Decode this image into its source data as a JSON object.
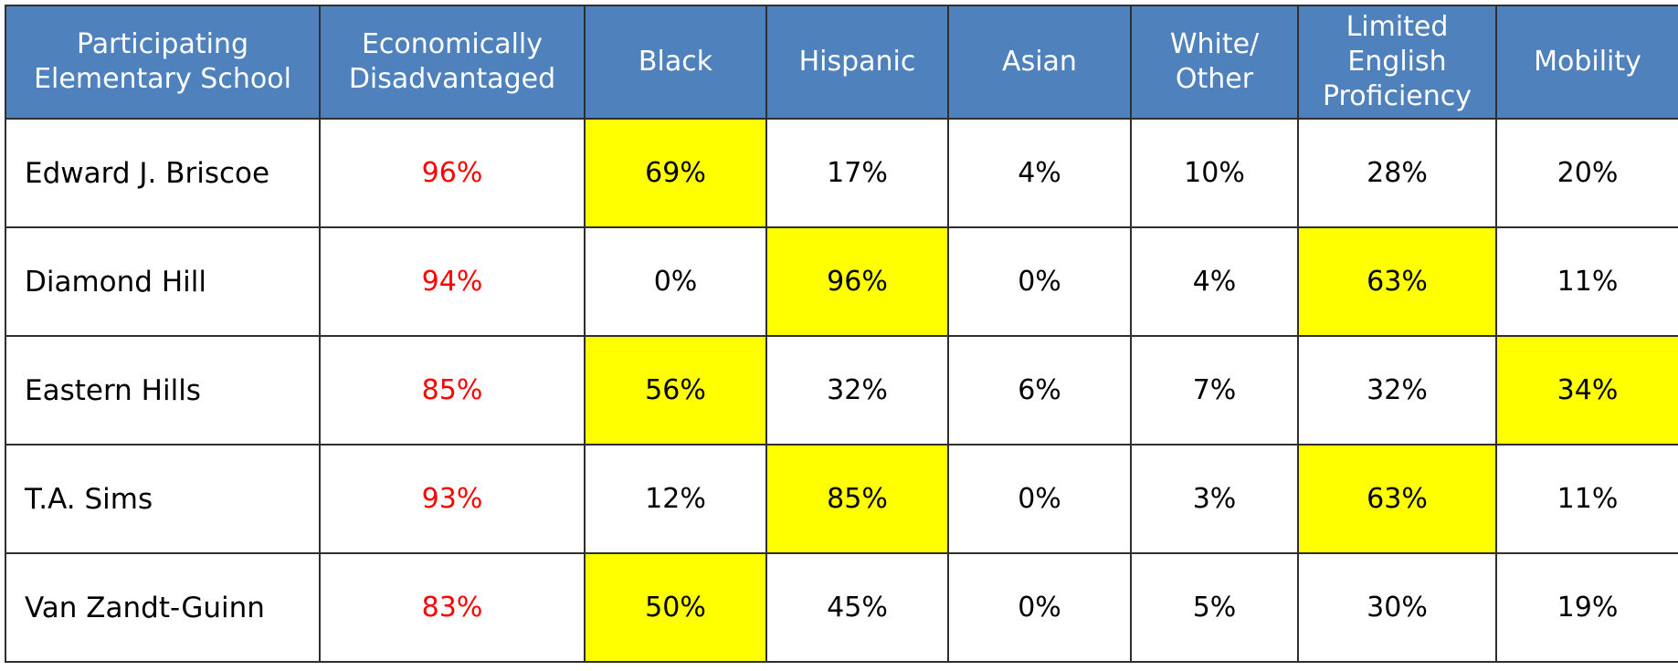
{
  "headers": [
    "Participating\nElementary School",
    "Economically\nDisadvantaged",
    "Black",
    "Hispanic",
    "Asian",
    "White/\nOther",
    "Limited\nEnglish\nProficiency",
    "Mobility"
  ],
  "rows": [
    {
      "school": "Edward J. Briscoe",
      "values": [
        "96%",
        "69%",
        "17%",
        "4%",
        "10%",
        "28%",
        "20%"
      ],
      "highlight": [
        false,
        true,
        false,
        false,
        false,
        false,
        false
      ]
    },
    {
      "school": "Diamond Hill",
      "values": [
        "94%",
        "0%",
        "96%",
        "0%",
        "4%",
        "63%",
        "11%"
      ],
      "highlight": [
        false,
        false,
        true,
        false,
        false,
        true,
        false
      ]
    },
    {
      "school": "Eastern Hills",
      "values": [
        "85%",
        "56%",
        "32%",
        "6%",
        "7%",
        "32%",
        "34%"
      ],
      "highlight": [
        false,
        true,
        false,
        false,
        false,
        false,
        true
      ]
    },
    {
      "school": "T.A. Sims",
      "values": [
        "93%",
        "12%",
        "85%",
        "0%",
        "3%",
        "63%",
        "11%"
      ],
      "highlight": [
        false,
        false,
        true,
        false,
        false,
        true,
        false
      ]
    },
    {
      "school": "Van Zandt-Guinn",
      "values": [
        "83%",
        "50%",
        "45%",
        "0%",
        "5%",
        "30%",
        "19%"
      ],
      "highlight": [
        false,
        true,
        false,
        false,
        false,
        false,
        false
      ]
    }
  ],
  "colors": {
    "header_bg": "#4f81bd",
    "header_text": "#ffffff",
    "highlight": "#ffff00",
    "econ_text": "#ff0000",
    "border": "#2f2f2f"
  }
}
